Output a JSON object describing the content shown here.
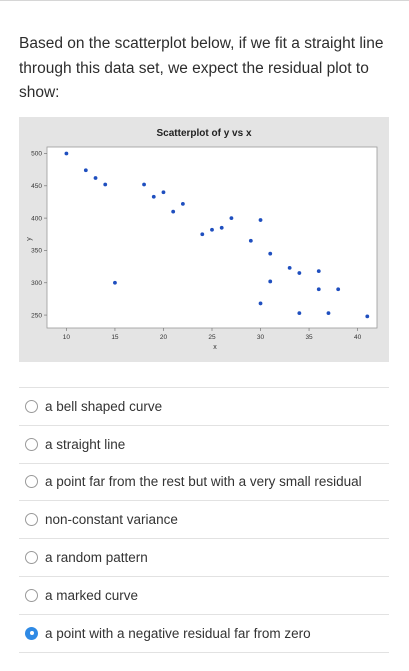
{
  "question": {
    "text": "Based on the scatterplot below, if we fit a straight line through this data set, we expect the residual plot to show:"
  },
  "chart_data": {
    "type": "scatter",
    "title": "Scatterplot of y vs x",
    "xlabel": "x",
    "ylabel": "y",
    "xlim": [
      8,
      42
    ],
    "ylim": [
      230,
      510
    ],
    "xticks": [
      10,
      15,
      20,
      25,
      30,
      35,
      40
    ],
    "yticks": [
      250,
      300,
      350,
      400,
      450,
      500
    ],
    "grid": false,
    "point_color": "#1f4fbf",
    "plot_background": "#ffffff",
    "panel_background": "#e4e4e4",
    "points": [
      {
        "x": 10,
        "y": 500
      },
      {
        "x": 12,
        "y": 474
      },
      {
        "x": 13,
        "y": 462
      },
      {
        "x": 14,
        "y": 452
      },
      {
        "x": 15,
        "y": 300
      },
      {
        "x": 18,
        "y": 452
      },
      {
        "x": 19,
        "y": 433
      },
      {
        "x": 20,
        "y": 440
      },
      {
        "x": 21,
        "y": 410
      },
      {
        "x": 22,
        "y": 422
      },
      {
        "x": 24,
        "y": 375
      },
      {
        "x": 25,
        "y": 382
      },
      {
        "x": 26,
        "y": 385
      },
      {
        "x": 27,
        "y": 400
      },
      {
        "x": 29,
        "y": 365
      },
      {
        "x": 30,
        "y": 397
      },
      {
        "x": 31,
        "y": 345
      },
      {
        "x": 31,
        "y": 302
      },
      {
        "x": 30,
        "y": 268
      },
      {
        "x": 33,
        "y": 323
      },
      {
        "x": 34,
        "y": 315
      },
      {
        "x": 36,
        "y": 318
      },
      {
        "x": 36,
        "y": 290
      },
      {
        "x": 34,
        "y": 253
      },
      {
        "x": 37,
        "y": 253
      },
      {
        "x": 38,
        "y": 290
      },
      {
        "x": 41,
        "y": 248
      }
    ]
  },
  "options": [
    {
      "label": "a bell shaped curve",
      "selected": false
    },
    {
      "label": "a straight line",
      "selected": false
    },
    {
      "label": "a point far from the rest but with a very small residual",
      "selected": false
    },
    {
      "label": "non-constant variance",
      "selected": false
    },
    {
      "label": "a random pattern",
      "selected": false
    },
    {
      "label": "a marked curve",
      "selected": false
    },
    {
      "label": "a point with a negative residual far from zero",
      "selected": true
    }
  ],
  "colors": {
    "accent": "#2f8ae5"
  }
}
